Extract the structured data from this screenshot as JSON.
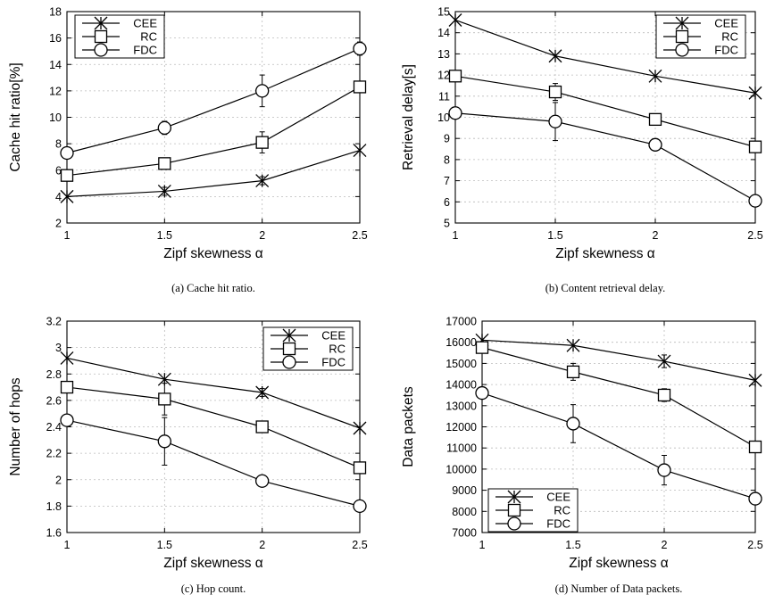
{
  "chart_data": [
    {
      "type": "line",
      "caption": "(a) Cache hit ratio.",
      "xlabel": "Zipf skewness α",
      "ylabel": "Cache hit ratio[%]",
      "x": [
        1,
        1.5,
        2,
        2.5
      ],
      "x_ticks": [
        "1",
        "1.5",
        "2",
        "2.5"
      ],
      "xlim": [
        1,
        2.5
      ],
      "ylim": [
        2,
        18
      ],
      "y_ticks": [
        2,
        4,
        6,
        8,
        10,
        12,
        14,
        16,
        18
      ],
      "grid": true,
      "legend_position": "top-left",
      "series": [
        {
          "name": "CEE",
          "marker": "star",
          "values": [
            4.0,
            4.4,
            5.2,
            7.5
          ],
          "errors": [
            0,
            0.3,
            0.3,
            0
          ]
        },
        {
          "name": "RC",
          "marker": "square",
          "values": [
            5.6,
            6.5,
            8.1,
            12.3
          ],
          "errors": [
            0,
            0.3,
            0.8,
            0.3
          ]
        },
        {
          "name": "FDC",
          "marker": "circle",
          "values": [
            7.3,
            9.2,
            12.0,
            15.2
          ],
          "errors": [
            0,
            0.5,
            1.2,
            0.5
          ]
        }
      ]
    },
    {
      "type": "line",
      "caption": "(b) Content retrieval delay.",
      "xlabel": "Zipf skewness α",
      "ylabel": "Retrieval delay[s]",
      "x": [
        1,
        1.5,
        2,
        2.5
      ],
      "x_ticks": [
        "1",
        "1.5",
        "2",
        "2.5"
      ],
      "xlim": [
        1,
        2.5
      ],
      "ylim": [
        5,
        15
      ],
      "y_ticks": [
        5,
        6,
        7,
        8,
        9,
        10,
        11,
        12,
        13,
        14,
        15
      ],
      "grid": true,
      "legend_position": "top-right",
      "series": [
        {
          "name": "CEE",
          "marker": "star",
          "values": [
            14.6,
            12.9,
            11.95,
            11.15
          ],
          "errors": [
            0,
            0,
            0,
            0
          ]
        },
        {
          "name": "RC",
          "marker": "square",
          "values": [
            11.95,
            11.2,
            9.9,
            8.6
          ],
          "errors": [
            0,
            0.4,
            0.2,
            0.2
          ]
        },
        {
          "name": "FDC",
          "marker": "circle",
          "values": [
            10.2,
            9.8,
            8.7,
            6.05
          ],
          "errors": [
            0,
            0.9,
            0.2,
            0
          ]
        }
      ]
    },
    {
      "type": "line",
      "caption": "(c) Hop count.",
      "xlabel": "Zipf skewness α",
      "ylabel": "Number of hops",
      "x": [
        1,
        1.5,
        2,
        2.5
      ],
      "x_ticks": [
        "1",
        "1.5",
        "2",
        "2.5"
      ],
      "xlim": [
        1,
        2.5
      ],
      "ylim": [
        1.6,
        3.2
      ],
      "y_ticks": [
        "1.6",
        "1.8",
        "2",
        "2.2",
        "2.4",
        "2.6",
        "2.8",
        "3",
        "3.2"
      ],
      "grid": true,
      "legend_position": "top-right",
      "series": [
        {
          "name": "CEE",
          "marker": "star",
          "values": [
            2.92,
            2.76,
            2.66,
            2.39
          ],
          "errors": [
            0,
            0,
            0.03,
            0
          ]
        },
        {
          "name": "RC",
          "marker": "square",
          "values": [
            2.7,
            2.61,
            2.4,
            2.09
          ],
          "errors": [
            0,
            0.12,
            0.03,
            0
          ]
        },
        {
          "name": "FDC",
          "marker": "circle",
          "values": [
            2.45,
            2.29,
            1.99,
            1.8
          ],
          "errors": [
            0,
            0.18,
            0.03,
            0
          ]
        }
      ]
    },
    {
      "type": "line",
      "caption": "(d) Number of Data packets.",
      "xlabel": "Zipf skewness α",
      "ylabel": "Data packets",
      "x": [
        1,
        1.5,
        2,
        2.5
      ],
      "x_ticks": [
        "1",
        "1.5",
        "2",
        "2.5"
      ],
      "xlim": [
        1,
        2.5
      ],
      "ylim": [
        7000,
        17000
      ],
      "y_ticks": [
        7000,
        8000,
        9000,
        10000,
        11000,
        12000,
        13000,
        14000,
        15000,
        16000,
        17000
      ],
      "grid": true,
      "legend_position": "bottom-left",
      "series": [
        {
          "name": "CEE",
          "marker": "star",
          "values": [
            16100,
            15850,
            15100,
            14200
          ],
          "errors": [
            0,
            0,
            300,
            0
          ]
        },
        {
          "name": "RC",
          "marker": "square",
          "values": [
            15750,
            14600,
            13500,
            11050
          ],
          "errors": [
            0,
            400,
            300,
            0
          ]
        },
        {
          "name": "FDC",
          "marker": "circle",
          "values": [
            13600,
            12150,
            9950,
            8600
          ],
          "errors": [
            0,
            900,
            700,
            0
          ]
        }
      ]
    }
  ]
}
